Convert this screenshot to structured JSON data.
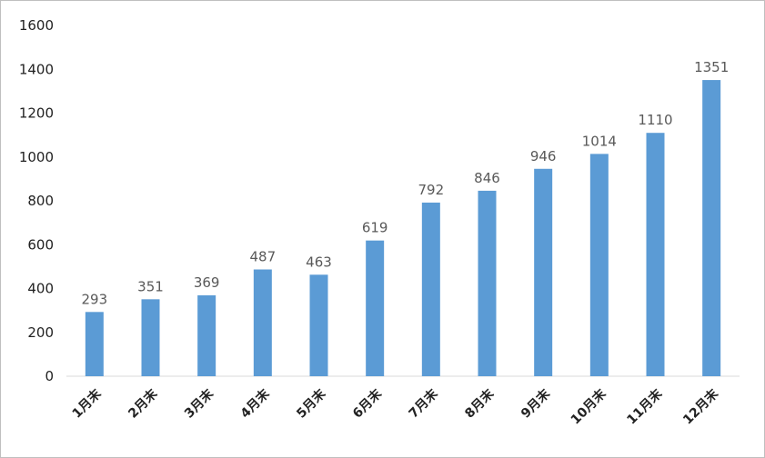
{
  "chart_data": {
    "type": "bar",
    "title": "",
    "xlabel": "",
    "ylabel": "",
    "categories": [
      "1月末",
      "2月末",
      "3月末",
      "4月末",
      "5月末",
      "6月末",
      "7月末",
      "8月末",
      "9月末",
      "10月末",
      "11月末",
      "12月末"
    ],
    "values": [
      293,
      351,
      369,
      487,
      463,
      619,
      792,
      846,
      946,
      1014,
      1110,
      1351
    ],
    "data_labels": [
      "293",
      "351",
      "369",
      "487",
      "463",
      "619",
      "792",
      "846",
      "946",
      "1014",
      "1110",
      "1351"
    ],
    "yticks": [
      0,
      200,
      400,
      600,
      800,
      1000,
      1200,
      1400,
      1600
    ],
    "ytick_labels": [
      "0",
      "200",
      "400",
      "600",
      "800",
      "1000",
      "1200",
      "1400",
      "1600"
    ],
    "ylim": [
      0,
      1600
    ],
    "grid": false,
    "legend": "none",
    "bar_color": "#5b9bd5"
  }
}
